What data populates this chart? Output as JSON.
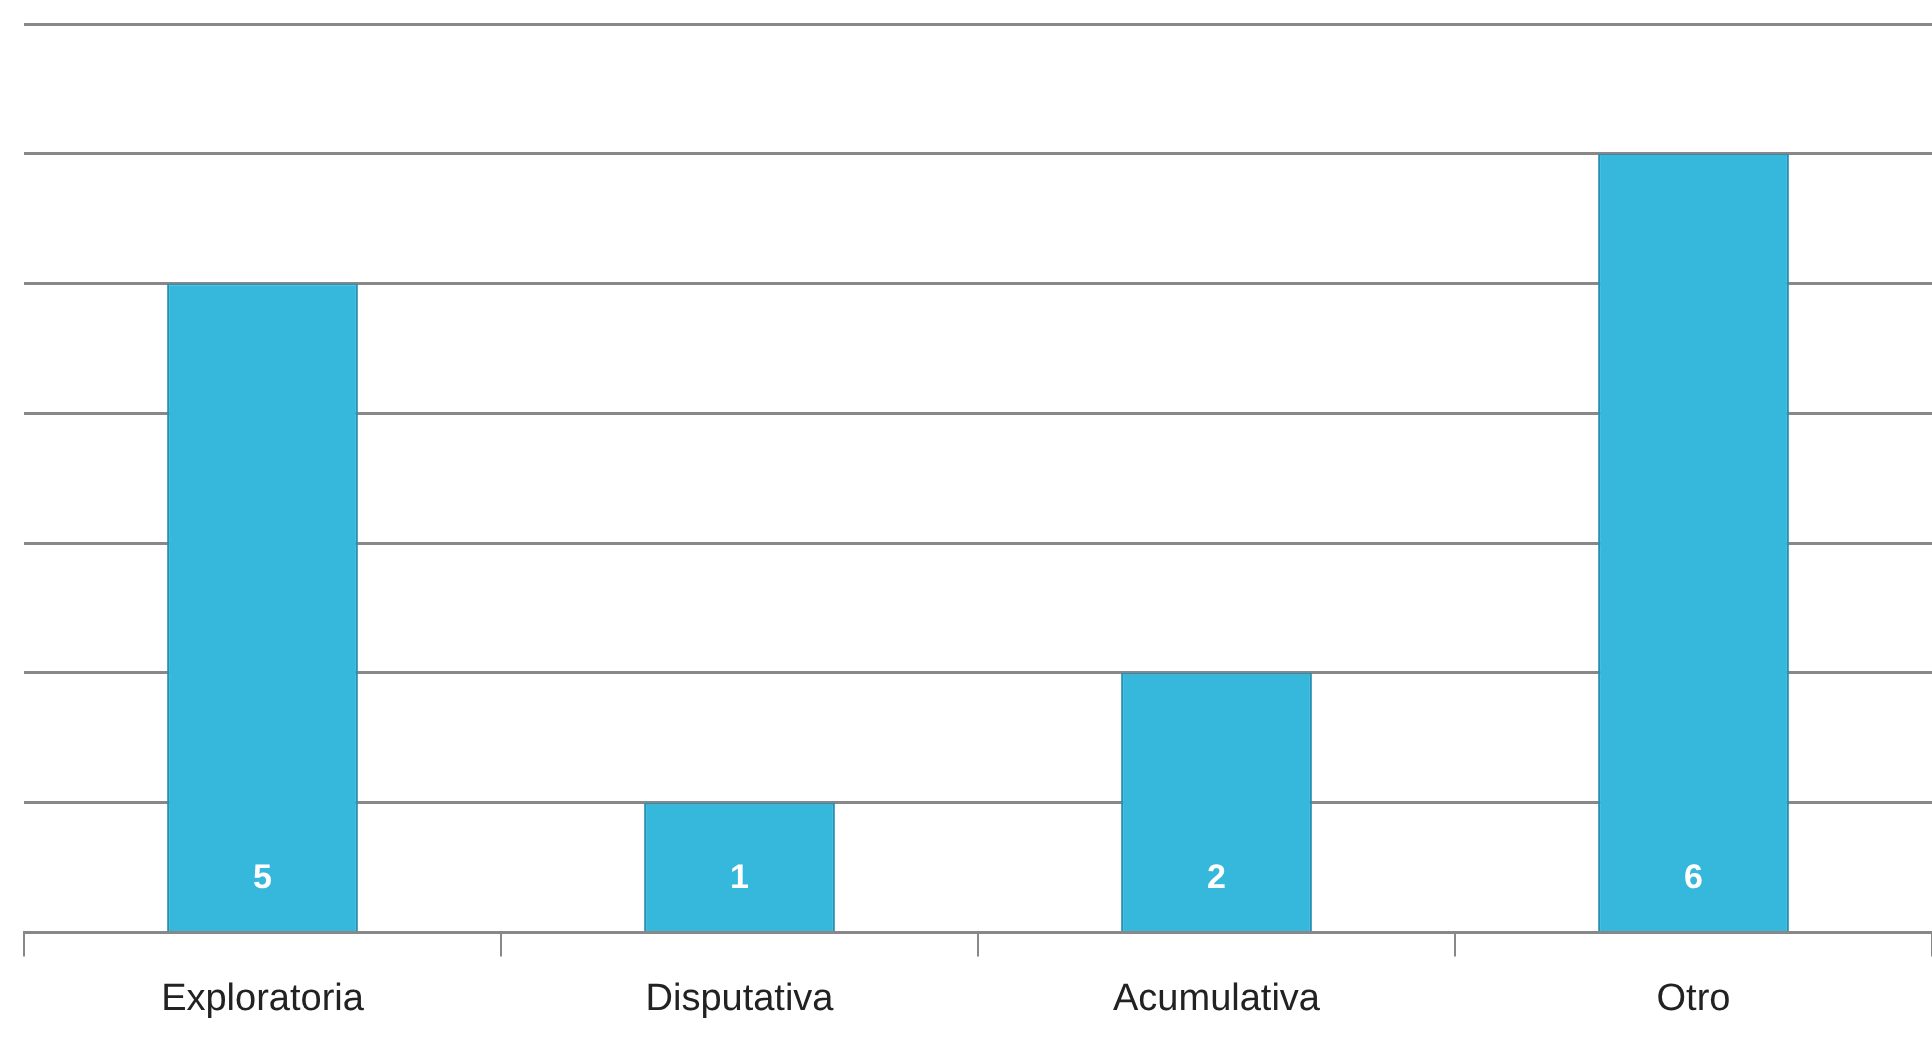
{
  "chart_data": {
    "type": "bar",
    "categories": [
      "Exploratoria",
      "Disputativa",
      "Acumulativa",
      "Otro"
    ],
    "values": [
      5,
      1,
      2,
      6
    ],
    "color": "#35b8dc",
    "ylim": [
      0,
      7
    ],
    "yticks": [
      {
        "value": 0,
        "label": null
      },
      {
        "value": 1,
        "label": null
      },
      {
        "value": 2,
        "label": null
      },
      {
        "value": 3,
        "label": null
      },
      {
        "value": 4,
        "label": null
      },
      {
        "value": 5,
        "label": null
      },
      {
        "value": 6,
        "label": null
      },
      {
        "value": 7,
        "label": null
      }
    ],
    "grid": "y",
    "tick_labels": "x",
    "data_labels": true,
    "legend": false
  }
}
